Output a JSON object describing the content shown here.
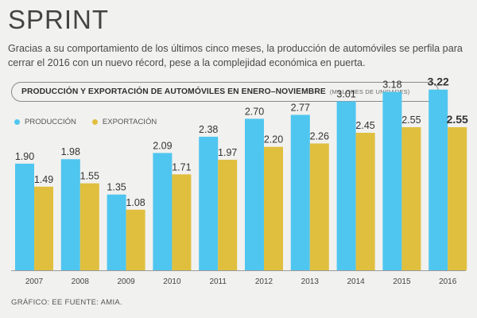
{
  "header": {
    "title": "SPRINT",
    "subtitle": "Gracias a su comportamiento de los últimos cinco meses, la producción de automóviles se perfila para cerrar el 2016 con un nuevo récord, pese a la complejidad económica en puerta."
  },
  "colors": {
    "produccion": "#4fc6ef",
    "exportacion": "#e0bf3f",
    "background": "#f1f1ef"
  },
  "chart_data": {
    "type": "bar",
    "title": "PRODUCCIÓN Y EXPORTACIÓN DE AUTOMÓVILES EN ENERO–NOVIEMBRE",
    "units": "(MILLONES DE UNIDADES)",
    "categories": [
      "2007",
      "2008",
      "2009",
      "2010",
      "2011",
      "2012",
      "2013",
      "2014",
      "2015",
      "2016"
    ],
    "series": [
      {
        "name": "PRODUCCIÓN",
        "values": [
          1.9,
          1.98,
          1.35,
          2.09,
          2.38,
          2.7,
          2.77,
          3.01,
          3.18,
          3.22
        ]
      },
      {
        "name": "EXPORTACIÓN",
        "values": [
          1.49,
          1.55,
          1.08,
          1.71,
          1.97,
          2.2,
          2.26,
          2.45,
          2.55,
          2.55
        ]
      }
    ],
    "value_labels": {
      "PRODUCCIÓN": [
        "1.90",
        "1.98",
        "1.35",
        "2.09",
        "2.38",
        "2.70",
        "2.77",
        "3.01",
        "3.18",
        "3.22"
      ],
      "EXPORTACIÓN": [
        "1.49",
        "1.55",
        "1.08",
        "1.71",
        "1.97",
        "2.20",
        "2.26",
        "2.45",
        "2.55",
        "2.55"
      ]
    },
    "ylim": [
      0,
      3.4
    ],
    "grid": false,
    "legend": "top-left",
    "highlight_category": "2016"
  },
  "footer": {
    "credit": "GRÁFICO: EE  FUENTE: AMIA."
  }
}
